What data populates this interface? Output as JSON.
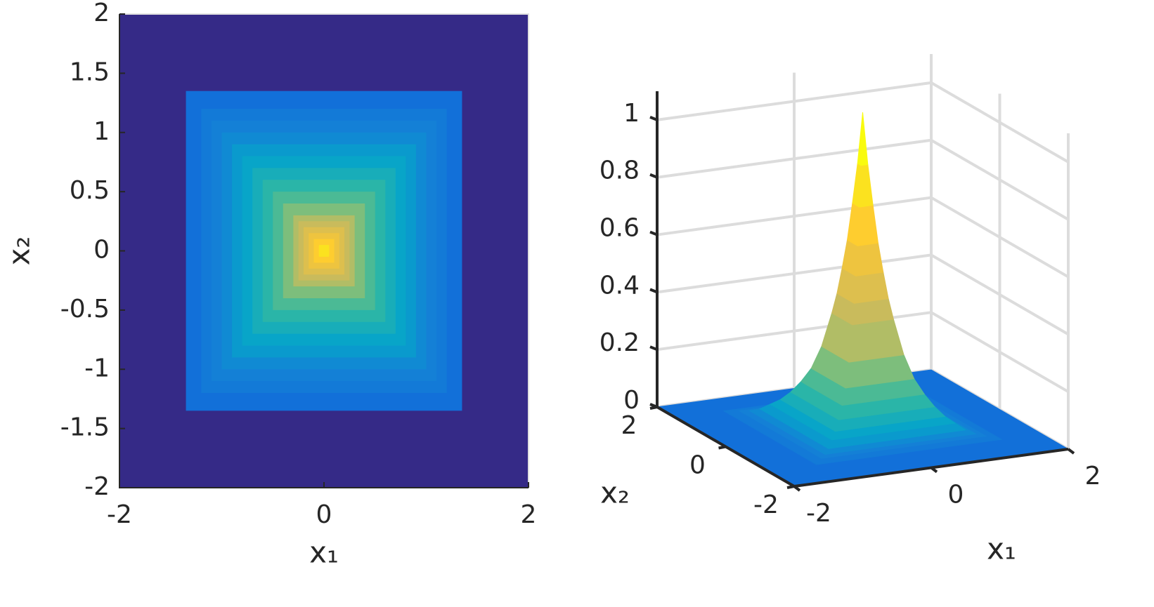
{
  "chart_data": [
    {
      "type": "contour",
      "x": [
        2,
        1.35,
        1.2,
        1.1,
        1.0,
        0.9,
        0.8,
        0.7,
        0.6,
        0.5,
        0.4,
        0.3,
        0.25,
        0.2,
        0.15,
        0.1,
        0.05,
        0
      ],
      "values": [
        0,
        0.01,
        0.016,
        0.02,
        0.03,
        0.05,
        0.07,
        0.1,
        0.14,
        0.19,
        0.27,
        0.39,
        0.46,
        0.55,
        0.65,
        0.78,
        0.92,
        1.1
      ],
      "colormap": [
        "#352a87",
        "#0f5cdd",
        "#1481d6",
        "#06a4ca",
        "#2eb7a4",
        "#87bf77",
        "#d1bb59",
        "#fec832",
        "#f9fb0e"
      ],
      "xlabel": "x₁",
      "ylabel": "x₂",
      "xlim": [
        -2,
        2
      ],
      "ylim": [
        -2,
        2
      ],
      "xticks": [
        -2,
        0,
        2
      ],
      "yticks": [
        -2,
        -1.5,
        -1,
        -0.5,
        0,
        0.5,
        1,
        1.5,
        2
      ]
    },
    {
      "type": "surface",
      "x": [
        2,
        1.35,
        1.2,
        1.1,
        1.0,
        0.9,
        0.8,
        0.7,
        0.6,
        0.5,
        0.4,
        0.3,
        0.25,
        0.2,
        0.15,
        0.1,
        0.05,
        0
      ],
      "values": [
        0,
        0.01,
        0.016,
        0.02,
        0.03,
        0.05,
        0.07,
        0.1,
        0.14,
        0.19,
        0.27,
        0.39,
        0.46,
        0.55,
        0.65,
        0.78,
        0.92,
        1.1
      ],
      "colormap": [
        "#352a87",
        "#0f5cdd",
        "#1481d6",
        "#06a4ca",
        "#2eb7a4",
        "#87bf77",
        "#d1bb59",
        "#fec832",
        "#f9fb0e"
      ],
      "xlabel": "x₁",
      "ylabel": "x₂",
      "xlim": [
        -2,
        2
      ],
      "ylim": [
        -2,
        2
      ],
      "zlim": [
        0,
        1.1
      ],
      "xticks": [
        -2,
        0,
        2
      ],
      "yticks": [
        -2,
        0,
        2
      ],
      "zticks": [
        0,
        0.2,
        0.4,
        0.6,
        0.8,
        1
      ],
      "grid": true
    }
  ]
}
